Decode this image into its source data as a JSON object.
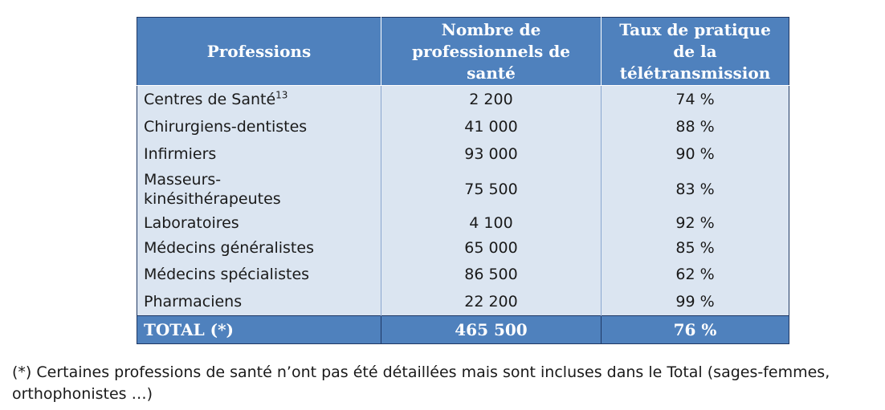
{
  "table": {
    "headers": [
      "Professions",
      "Nombre de professionnels de santé",
      "Taux de pratique de la télétransmission"
    ],
    "rows": [
      {
        "profession": "Centres de Santé",
        "sup": "13",
        "count": "2 200",
        "rate": "74 %"
      },
      {
        "profession": "Chirurgiens-dentistes",
        "count": "41 000",
        "rate": "88 %"
      },
      {
        "profession": "Infirmiers",
        "count": "93 000",
        "rate": "90 %"
      },
      {
        "profession": "Masseurs-kinésithérapeutes",
        "line1": "Masseurs-",
        "line2": "kinésithérapeutes",
        "count": "75 500",
        "rate": "83 %"
      },
      {
        "profession": "Laboratoires",
        "count": "4 100",
        "rate": "92 %"
      },
      {
        "profession": "Médecins généralistes",
        "count": "65 000",
        "rate": "85 %"
      },
      {
        "profession": "Médecins spécialistes",
        "count": "86 500",
        "rate": "62 %"
      },
      {
        "profession": "Pharmaciens",
        "count": "22 200",
        "rate": "99 %"
      }
    ],
    "total": {
      "label": "TOTAL (*)",
      "count": "465 500",
      "rate": "76 %"
    }
  },
  "footnote": "(*) Certaines professions de santé n’ont pas été détaillées mais sont incluses dans le Total (sages-femmes, orthophonistes …)"
}
